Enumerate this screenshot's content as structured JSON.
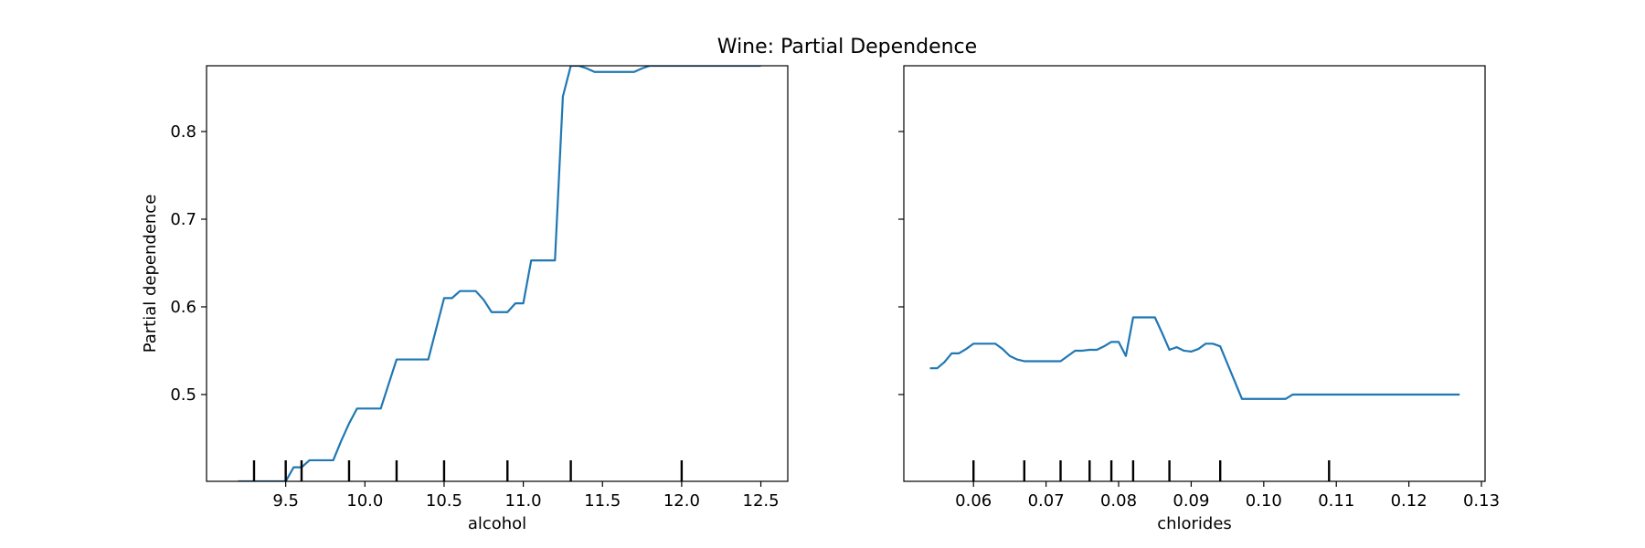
{
  "title": "Wine: Partial Dependence",
  "line_color": "#1f77b4",
  "chart_data": [
    {
      "type": "line",
      "xlabel": "alcohol",
      "ylabel": "Partial dependence",
      "xlim": [
        9.0,
        12.67
      ],
      "ylim": [
        0.401,
        0.875
      ],
      "xticks": [
        9.5,
        10.0,
        10.5,
        11.0,
        11.5,
        12.0,
        12.5
      ],
      "xtick_labels": [
        "9.5",
        "10.0",
        "10.5",
        "11.0",
        "11.5",
        "12.0",
        "12.5"
      ],
      "yticks": [
        0.5,
        0.6,
        0.7,
        0.8
      ],
      "ytick_labels": [
        "0.5",
        "0.6",
        "0.7",
        "0.8"
      ],
      "show_ytick_labels": true,
      "deciles": [
        9.3,
        9.5,
        9.6,
        9.9,
        10.2,
        10.5,
        10.9,
        11.3,
        12.0
      ],
      "x": [
        9.2,
        9.25,
        9.3,
        9.35,
        9.4,
        9.45,
        9.5,
        9.55,
        9.6,
        9.65,
        9.7,
        9.75,
        9.8,
        9.85,
        9.9,
        9.95,
        10.0,
        10.05,
        10.1,
        10.15,
        10.2,
        10.25,
        10.3,
        10.35,
        10.4,
        10.45,
        10.5,
        10.55,
        10.6,
        10.65,
        10.7,
        10.75,
        10.8,
        10.85,
        10.9,
        10.95,
        11.0,
        11.05,
        11.1,
        11.15,
        11.2,
        11.25,
        11.3,
        11.35,
        11.4,
        11.45,
        11.5,
        11.55,
        11.6,
        11.65,
        11.7,
        11.75,
        11.8,
        11.85,
        11.9,
        11.95,
        12.0,
        12.05,
        12.1,
        12.15,
        12.2,
        12.25,
        12.3,
        12.35,
        12.4,
        12.45,
        12.5
      ],
      "y": [
        0.401,
        0.401,
        0.401,
        0.401,
        0.401,
        0.401,
        0.401,
        0.417,
        0.417,
        0.425,
        0.425,
        0.425,
        0.425,
        0.447,
        0.467,
        0.484,
        0.484,
        0.484,
        0.484,
        0.512,
        0.54,
        0.54,
        0.54,
        0.54,
        0.54,
        0.575,
        0.61,
        0.61,
        0.618,
        0.618,
        0.618,
        0.608,
        0.594,
        0.594,
        0.594,
        0.604,
        0.604,
        0.653,
        0.653,
        0.653,
        0.653,
        0.84,
        0.875,
        0.875,
        0.872,
        0.868,
        0.868,
        0.868,
        0.868,
        0.868,
        0.868,
        0.872,
        0.875,
        0.875,
        0.875,
        0.875,
        0.875,
        0.875,
        0.875,
        0.875,
        0.875,
        0.875,
        0.875,
        0.875,
        0.875,
        0.875,
        0.875
      ]
    },
    {
      "type": "line",
      "xlabel": "chlorides",
      "ylabel": "",
      "xlim": [
        0.0504,
        0.1305
      ],
      "ylim": [
        0.401,
        0.875
      ],
      "xticks": [
        0.06,
        0.07,
        0.08,
        0.09,
        0.1,
        0.11,
        0.12,
        0.13
      ],
      "xtick_labels": [
        "0.06",
        "0.07",
        "0.08",
        "0.09",
        "0.10",
        "0.11",
        "0.12",
        "0.13"
      ],
      "yticks": [
        0.5,
        0.6,
        0.7,
        0.8
      ],
      "ytick_labels": [
        "0.5",
        "0.6",
        "0.7",
        "0.8"
      ],
      "show_ytick_labels": false,
      "deciles": [
        0.06,
        0.067,
        0.072,
        0.076,
        0.079,
        0.082,
        0.087,
        0.094,
        0.109
      ],
      "x": [
        0.054,
        0.055,
        0.056,
        0.057,
        0.058,
        0.059,
        0.06,
        0.061,
        0.062,
        0.063,
        0.064,
        0.065,
        0.066,
        0.067,
        0.068,
        0.069,
        0.07,
        0.071,
        0.072,
        0.073,
        0.074,
        0.075,
        0.076,
        0.077,
        0.078,
        0.079,
        0.08,
        0.081,
        0.082,
        0.083,
        0.084,
        0.085,
        0.086,
        0.087,
        0.088,
        0.089,
        0.09,
        0.091,
        0.092,
        0.093,
        0.094,
        0.095,
        0.096,
        0.097,
        0.098,
        0.099,
        0.1,
        0.101,
        0.102,
        0.103,
        0.104,
        0.105,
        0.106,
        0.107,
        0.108,
        0.109,
        0.11,
        0.115,
        0.12,
        0.125,
        0.127
      ],
      "y": [
        0.53,
        0.53,
        0.537,
        0.547,
        0.547,
        0.552,
        0.558,
        0.558,
        0.558,
        0.558,
        0.552,
        0.544,
        0.54,
        0.538,
        0.538,
        0.538,
        0.538,
        0.538,
        0.538,
        0.544,
        0.55,
        0.55,
        0.551,
        0.551,
        0.555,
        0.56,
        0.56,
        0.544,
        0.588,
        0.588,
        0.588,
        0.588,
        0.57,
        0.551,
        0.554,
        0.55,
        0.549,
        0.552,
        0.558,
        0.558,
        0.555,
        0.535,
        0.515,
        0.495,
        0.495,
        0.495,
        0.495,
        0.495,
        0.495,
        0.495,
        0.5,
        0.5,
        0.5,
        0.5,
        0.5,
        0.5,
        0.5,
        0.5,
        0.5,
        0.5,
        0.5
      ]
    }
  ]
}
